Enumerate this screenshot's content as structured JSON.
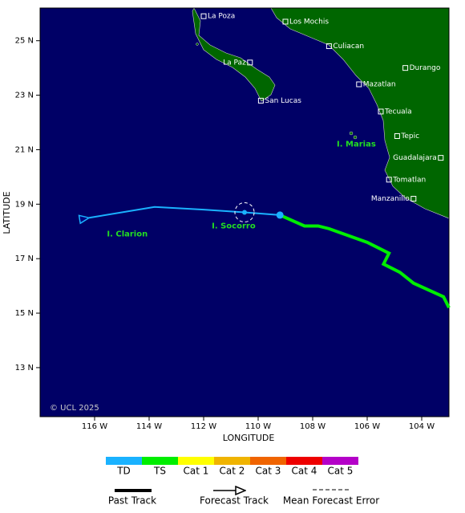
{
  "map": {
    "x_label": "LONGITUDE",
    "y_label": "LATITUDE",
    "xlim": [
      118,
      103
    ],
    "ylim": [
      11.2,
      26.2
    ],
    "xticks": [
      {
        "value": 116,
        "label": "116 W"
      },
      {
        "value": 114,
        "label": "114 W"
      },
      {
        "value": 112,
        "label": "112 W"
      },
      {
        "value": 110,
        "label": "110 W"
      },
      {
        "value": 108,
        "label": "108 W"
      },
      {
        "value": 106,
        "label": "106 W"
      },
      {
        "value": 104,
        "label": "104 W"
      }
    ],
    "yticks": [
      {
        "value": 25,
        "label": "25 N"
      },
      {
        "value": 23,
        "label": "23 N"
      },
      {
        "value": 21,
        "label": "21 N"
      },
      {
        "value": 19,
        "label": "19 N"
      },
      {
        "value": 17,
        "label": "17 N"
      },
      {
        "value": 15,
        "label": "15 N"
      },
      {
        "value": 13,
        "label": "13 N"
      }
    ],
    "cities": [
      {
        "name": "La Poza",
        "lon": 112.0,
        "lat": 25.9,
        "side": "right"
      },
      {
        "name": "Los Mochis",
        "lon": 109.0,
        "lat": 25.7,
        "side": "right"
      },
      {
        "name": "Culiacan",
        "lon": 107.4,
        "lat": 24.8,
        "side": "right"
      },
      {
        "name": "Durango",
        "lon": 104.6,
        "lat": 24.0,
        "side": "right"
      },
      {
        "name": "La Paz",
        "lon": 110.3,
        "lat": 24.2,
        "side": "left"
      },
      {
        "name": "Mazatlan",
        "lon": 106.3,
        "lat": 23.4,
        "side": "right"
      },
      {
        "name": "San Lucas",
        "lon": 109.9,
        "lat": 22.8,
        "side": "right"
      },
      {
        "name": "Tecuala",
        "lon": 105.5,
        "lat": 22.4,
        "side": "right"
      },
      {
        "name": "Tepic",
        "lon": 104.9,
        "lat": 21.5,
        "side": "right"
      },
      {
        "name": "Guadalajara",
        "lon": 103.3,
        "lat": 20.7,
        "side": "left"
      },
      {
        "name": "Tomatlan",
        "lon": 105.2,
        "lat": 19.9,
        "side": "right"
      },
      {
        "name": "Manzanillo",
        "lon": 104.3,
        "lat": 19.2,
        "side": "left"
      }
    ],
    "islands": [
      {
        "name": "I. Marias",
        "lon": 106.4,
        "lat": 21.2
      },
      {
        "name": "I. Socorro",
        "lon": 110.9,
        "lat": 18.2
      },
      {
        "name": "I. Clarion",
        "lon": 114.8,
        "lat": 17.9
      }
    ],
    "past_track": {
      "color": "#00ee00",
      "lon": [
        103.0,
        103.2,
        104.3,
        104.8,
        105.4,
        105.2,
        106.0,
        107.4,
        107.8,
        108.3,
        109.2
      ],
      "lat": [
        15.2,
        15.6,
        16.1,
        16.5,
        16.8,
        17.2,
        17.6,
        18.1,
        18.2,
        18.2,
        18.6
      ]
    },
    "forecast_track": {
      "color": "#1ab2ff",
      "lon": [
        109.2,
        110.5,
        112.0,
        113.8,
        116.2
      ],
      "lat": [
        18.6,
        18.7,
        18.8,
        18.9,
        18.5
      ]
    },
    "credit": "© UCL 2025"
  },
  "legend": {
    "categories": [
      {
        "name": "TD",
        "color": "#1ab2ff"
      },
      {
        "name": "TS",
        "color": "#00ee00"
      },
      {
        "name": "Cat 1",
        "color": "#ffff00"
      },
      {
        "name": "Cat 2",
        "color": "#f0b400"
      },
      {
        "name": "Cat 3",
        "color": "#f06400"
      },
      {
        "name": "Cat 4",
        "color": "#ee0000"
      },
      {
        "name": "Cat 5",
        "color": "#b400c8"
      }
    ],
    "items": [
      "Past Track",
      "Forecast Track",
      "Mean Forecast Error"
    ]
  }
}
